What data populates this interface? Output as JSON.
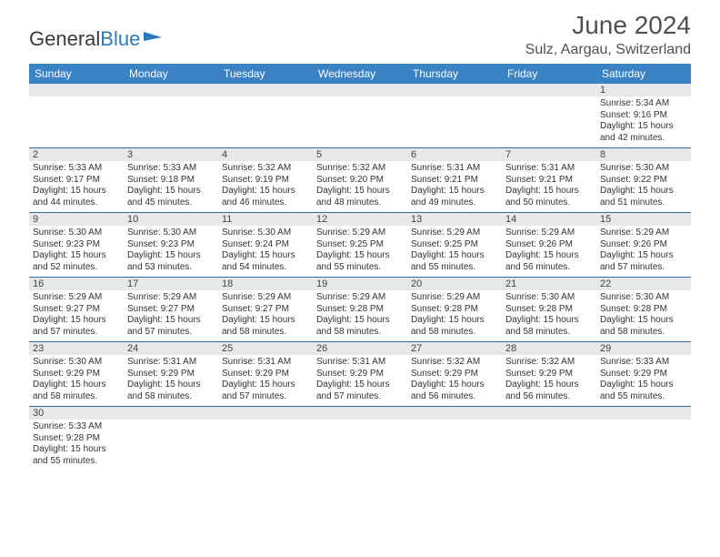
{
  "logo": {
    "textBlack": "General",
    "textBlue": "Blue",
    "flagColor": "#2a7ab8"
  },
  "title": "June 2024",
  "location": "Sulz, Aargau, Switzerland",
  "colors": {
    "headerBar": "#3a82c4",
    "daynumStrip": "#e8e8e8",
    "weekDivider": "#2e6ca8",
    "textDark": "#333333",
    "titleGray": "#505050"
  },
  "dayHeaders": [
    "Sunday",
    "Monday",
    "Tuesday",
    "Wednesday",
    "Thursday",
    "Friday",
    "Saturday"
  ],
  "weeks": [
    [
      null,
      null,
      null,
      null,
      null,
      null,
      {
        "n": "1",
        "sunrise": "Sunrise: 5:34 AM",
        "sunset": "Sunset: 9:16 PM",
        "daylight": "Daylight: 15 hours and 42 minutes."
      }
    ],
    [
      {
        "n": "2",
        "sunrise": "Sunrise: 5:33 AM",
        "sunset": "Sunset: 9:17 PM",
        "daylight": "Daylight: 15 hours and 44 minutes."
      },
      {
        "n": "3",
        "sunrise": "Sunrise: 5:33 AM",
        "sunset": "Sunset: 9:18 PM",
        "daylight": "Daylight: 15 hours and 45 minutes."
      },
      {
        "n": "4",
        "sunrise": "Sunrise: 5:32 AM",
        "sunset": "Sunset: 9:19 PM",
        "daylight": "Daylight: 15 hours and 46 minutes."
      },
      {
        "n": "5",
        "sunrise": "Sunrise: 5:32 AM",
        "sunset": "Sunset: 9:20 PM",
        "daylight": "Daylight: 15 hours and 48 minutes."
      },
      {
        "n": "6",
        "sunrise": "Sunrise: 5:31 AM",
        "sunset": "Sunset: 9:21 PM",
        "daylight": "Daylight: 15 hours and 49 minutes."
      },
      {
        "n": "7",
        "sunrise": "Sunrise: 5:31 AM",
        "sunset": "Sunset: 9:21 PM",
        "daylight": "Daylight: 15 hours and 50 minutes."
      },
      {
        "n": "8",
        "sunrise": "Sunrise: 5:30 AM",
        "sunset": "Sunset: 9:22 PM",
        "daylight": "Daylight: 15 hours and 51 minutes."
      }
    ],
    [
      {
        "n": "9",
        "sunrise": "Sunrise: 5:30 AM",
        "sunset": "Sunset: 9:23 PM",
        "daylight": "Daylight: 15 hours and 52 minutes."
      },
      {
        "n": "10",
        "sunrise": "Sunrise: 5:30 AM",
        "sunset": "Sunset: 9:23 PM",
        "daylight": "Daylight: 15 hours and 53 minutes."
      },
      {
        "n": "11",
        "sunrise": "Sunrise: 5:30 AM",
        "sunset": "Sunset: 9:24 PM",
        "daylight": "Daylight: 15 hours and 54 minutes."
      },
      {
        "n": "12",
        "sunrise": "Sunrise: 5:29 AM",
        "sunset": "Sunset: 9:25 PM",
        "daylight": "Daylight: 15 hours and 55 minutes."
      },
      {
        "n": "13",
        "sunrise": "Sunrise: 5:29 AM",
        "sunset": "Sunset: 9:25 PM",
        "daylight": "Daylight: 15 hours and 55 minutes."
      },
      {
        "n": "14",
        "sunrise": "Sunrise: 5:29 AM",
        "sunset": "Sunset: 9:26 PM",
        "daylight": "Daylight: 15 hours and 56 minutes."
      },
      {
        "n": "15",
        "sunrise": "Sunrise: 5:29 AM",
        "sunset": "Sunset: 9:26 PM",
        "daylight": "Daylight: 15 hours and 57 minutes."
      }
    ],
    [
      {
        "n": "16",
        "sunrise": "Sunrise: 5:29 AM",
        "sunset": "Sunset: 9:27 PM",
        "daylight": "Daylight: 15 hours and 57 minutes."
      },
      {
        "n": "17",
        "sunrise": "Sunrise: 5:29 AM",
        "sunset": "Sunset: 9:27 PM",
        "daylight": "Daylight: 15 hours and 57 minutes."
      },
      {
        "n": "18",
        "sunrise": "Sunrise: 5:29 AM",
        "sunset": "Sunset: 9:27 PM",
        "daylight": "Daylight: 15 hours and 58 minutes."
      },
      {
        "n": "19",
        "sunrise": "Sunrise: 5:29 AM",
        "sunset": "Sunset: 9:28 PM",
        "daylight": "Daylight: 15 hours and 58 minutes."
      },
      {
        "n": "20",
        "sunrise": "Sunrise: 5:29 AM",
        "sunset": "Sunset: 9:28 PM",
        "daylight": "Daylight: 15 hours and 58 minutes."
      },
      {
        "n": "21",
        "sunrise": "Sunrise: 5:30 AM",
        "sunset": "Sunset: 9:28 PM",
        "daylight": "Daylight: 15 hours and 58 minutes."
      },
      {
        "n": "22",
        "sunrise": "Sunrise: 5:30 AM",
        "sunset": "Sunset: 9:28 PM",
        "daylight": "Daylight: 15 hours and 58 minutes."
      }
    ],
    [
      {
        "n": "23",
        "sunrise": "Sunrise: 5:30 AM",
        "sunset": "Sunset: 9:29 PM",
        "daylight": "Daylight: 15 hours and 58 minutes."
      },
      {
        "n": "24",
        "sunrise": "Sunrise: 5:31 AM",
        "sunset": "Sunset: 9:29 PM",
        "daylight": "Daylight: 15 hours and 58 minutes."
      },
      {
        "n": "25",
        "sunrise": "Sunrise: 5:31 AM",
        "sunset": "Sunset: 9:29 PM",
        "daylight": "Daylight: 15 hours and 57 minutes."
      },
      {
        "n": "26",
        "sunrise": "Sunrise: 5:31 AM",
        "sunset": "Sunset: 9:29 PM",
        "daylight": "Daylight: 15 hours and 57 minutes."
      },
      {
        "n": "27",
        "sunrise": "Sunrise: 5:32 AM",
        "sunset": "Sunset: 9:29 PM",
        "daylight": "Daylight: 15 hours and 56 minutes."
      },
      {
        "n": "28",
        "sunrise": "Sunrise: 5:32 AM",
        "sunset": "Sunset: 9:29 PM",
        "daylight": "Daylight: 15 hours and 56 minutes."
      },
      {
        "n": "29",
        "sunrise": "Sunrise: 5:33 AM",
        "sunset": "Sunset: 9:29 PM",
        "daylight": "Daylight: 15 hours and 55 minutes."
      }
    ],
    [
      {
        "n": "30",
        "sunrise": "Sunrise: 5:33 AM",
        "sunset": "Sunset: 9:28 PM",
        "daylight": "Daylight: 15 hours and 55 minutes."
      },
      null,
      null,
      null,
      null,
      null,
      null
    ]
  ]
}
